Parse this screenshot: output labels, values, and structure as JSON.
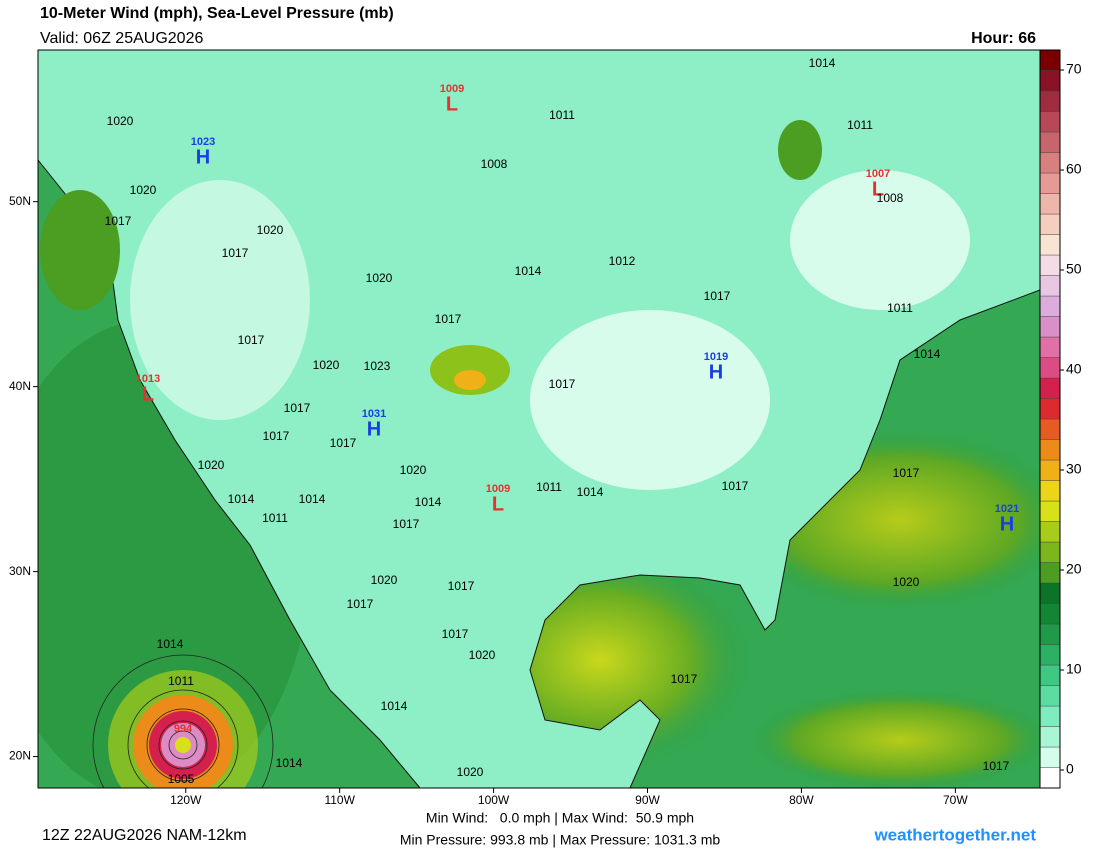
{
  "header": {
    "title": "10-Meter Wind (mph), Sea-Level Pressure (mb)",
    "valid": "Valid: 06Z 25AUG2026",
    "hour": "Hour: 66"
  },
  "map": {
    "lon_range": [
      -129.6,
      -64.5
    ],
    "lat_range": [
      18.3,
      58.2
    ],
    "lon_ticks": [
      {
        "value": -120,
        "label": "120W"
      },
      {
        "value": -110,
        "label": "110W"
      },
      {
        "value": -100,
        "label": "100W"
      },
      {
        "value": -90,
        "label": "90W"
      },
      {
        "value": -80,
        "label": "80W"
      },
      {
        "value": -70,
        "label": "70W"
      }
    ],
    "lat_ticks": [
      {
        "value": 50,
        "label": "50N"
      },
      {
        "value": 40,
        "label": "40N"
      },
      {
        "value": 30,
        "label": "30N"
      },
      {
        "value": 20,
        "label": "20N"
      }
    ],
    "centers": [
      {
        "type": "L",
        "value": 1009
      },
      {
        "type": "H",
        "value": 1023
      },
      {
        "type": "L",
        "value": 1007
      },
      {
        "type": "L",
        "value": 1013
      },
      {
        "type": "H",
        "value": 1019
      },
      {
        "type": "H",
        "value": 1031
      },
      {
        "type": "L",
        "value": 1009
      },
      {
        "type": "H",
        "value": 1021
      },
      {
        "value": 994
      }
    ],
    "isobar_labels": [
      1014,
      1011,
      1020,
      1011,
      1008,
      1020,
      1008,
      1017,
      1020,
      1017,
      1012,
      1014,
      1020,
      1017,
      1011,
      1017,
      1017,
      1014,
      1020,
      1023,
      1017,
      1017,
      1017,
      1017,
      1020,
      1020,
      1017,
      1011,
      1014,
      1017,
      1014,
      1014,
      1014,
      1011,
      1017,
      1020,
      1020,
      1017,
      1017,
      1017,
      1014,
      1020,
      1017,
      1011,
      1014,
      1005,
      1014,
      1020,
      1017
    ]
  },
  "colorbar": {
    "range": [
      -1.8,
      72
    ],
    "ticks": [
      0,
      10,
      20,
      30,
      40,
      50,
      60,
      70
    ],
    "colors": [
      "#ffffff",
      "#d4fdeb",
      "#a8f6d3",
      "#7eecbd",
      "#5cdca2",
      "#3fc882",
      "#2bb064",
      "#1f9a48",
      "#138634",
      "#0b7428",
      "#4c9e22",
      "#7cb61c",
      "#a8cc1a",
      "#d8e01a",
      "#ecd418",
      "#f0b018",
      "#ec8a1a",
      "#e45c22",
      "#dc2a2e",
      "#d4204c",
      "#dc4c84",
      "#e070a6",
      "#d890c6",
      "#dcacdc",
      "#e8c6e4",
      "#f4dce6",
      "#f8e4d4",
      "#f4cebe",
      "#eeb6aa",
      "#e69a96",
      "#d88080",
      "#c8646c",
      "#b64858",
      "#a02c40",
      "#8a1226",
      "#7a0000"
    ]
  },
  "footer": {
    "run": "12Z 22AUG2026 NAM-12km",
    "wind": "Min Wind:   0.0 mph | Max Wind:  50.9 mph",
    "pressure": "Min Pressure: 993.8 mb | Max Pressure: 1031.3 mb",
    "site": "weathertogether.net"
  }
}
